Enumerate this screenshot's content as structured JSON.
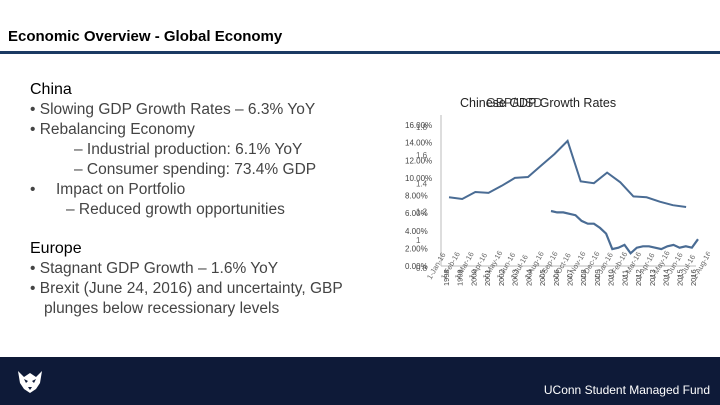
{
  "slide": {
    "title": "Economic Overview - Global Economy"
  },
  "china": {
    "heading": "China",
    "bullets": [
      "• Slowing GDP Growth Rates – 6.3% YoY",
      "• Rebalancing Economy",
      "– Industrial production: 6.1% YoY",
      "– Consumer spending: 73.4% GDP",
      "Impact on Portfolio",
      "– Reduced growth opportunities"
    ],
    "bullet_dot": "•"
  },
  "europe": {
    "heading": "Europe",
    "bullets": [
      "• Stagnant GDP Growth – 1.6% YoY",
      "• Brexit (June 24, 2016) and uncertainty, GBP",
      "plunges below recessionary levels"
    ]
  },
  "chart_data": {
    "type": "line",
    "title_overlap_1": "Chinese GDP Growth Rates",
    "title_overlap_2": "GBP/USD",
    "y_ticks_percent": [
      "16.00%",
      "14.00%",
      "12.00%",
      "10.00%",
      "8.00%",
      "6.00%",
      "4.00%",
      "2.00%",
      "0.00%"
    ],
    "y_ticks_gbp": [
      "1.8",
      "1.6",
      "1.4",
      "1.2",
      "1",
      "0.8"
    ],
    "ylim_percent": [
      0,
      16
    ],
    "ylim_gbp": [
      0.8,
      1.8
    ],
    "x_labels_gdp": [
      "1998",
      "1999",
      "2000",
      "2001",
      "2002",
      "2003",
      "2004",
      "2005",
      "2006",
      "2007",
      "2008",
      "2009",
      "2010",
      "2011",
      "2012",
      "2013",
      "2014",
      "2015",
      "2016"
    ],
    "x_labels_gbp": [
      "1-Jan-16",
      "1-Feb-16",
      "1-Mar-16",
      "1-Apr-16",
      "1-May-16",
      "1-Jun-16",
      "1-Jul-16",
      "1-Aug-16",
      "1-Sep-16",
      "1-Oct-16",
      "1-Nov-16",
      "1-Dec-16",
      "1-Jan-16",
      "1-Feb-16",
      "1-Mar-16",
      "1-Apr-16",
      "1-May-16",
      "1-Jun-16",
      "1-Jul-16",
      "1-Aug-16"
    ],
    "series": [
      {
        "name": "Chinese GDP Growth Rates",
        "axis": "percent",
        "values": [
          7.8,
          7.6,
          8.4,
          8.3,
          9.1,
          10.0,
          10.1,
          11.4,
          12.7,
          14.2,
          9.6,
          9.4,
          10.6,
          9.5,
          7.9,
          7.8,
          7.3,
          6.9,
          6.7
        ]
      },
      {
        "name": "GBP/USD",
        "axis": "gbp",
        "values": [
          1.19,
          1.18,
          1.18,
          1.17,
          1.16,
          1.12,
          1.1,
          1.1,
          1.07,
          1.03,
          0.92,
          0.93,
          0.95,
          0.89,
          0.93,
          0.94,
          0.94,
          0.93,
          0.92,
          0.94,
          0.95,
          0.93,
          0.94,
          0.93,
          0.99
        ]
      }
    ],
    "line_color": "#4a6c94"
  },
  "footer": {
    "text": "UConn Student Managed Fund"
  }
}
